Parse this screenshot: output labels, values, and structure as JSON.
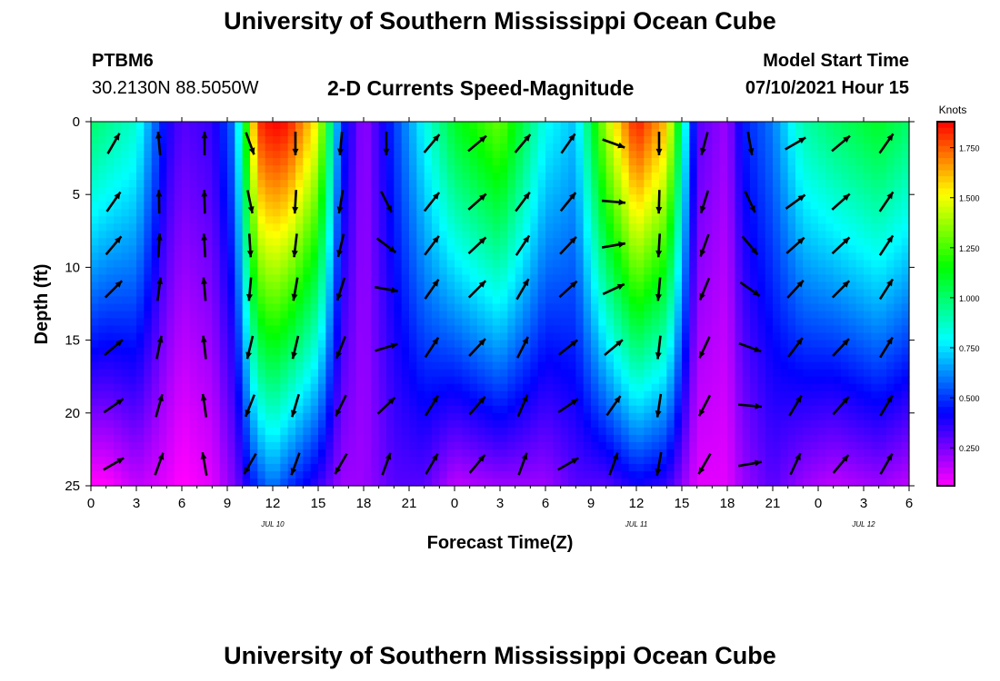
{
  "header": {
    "title": "University of Southern Mississippi Ocean Cube",
    "station_id": "PTBM6",
    "station_coords": "30.2130N  88.5050W",
    "plot_title": "2-D Currents Speed-Magnitude",
    "start_label": "Model Start Time",
    "start_value": "07/10/2021 Hour 15"
  },
  "footer": {
    "title": "University of Southern Mississippi Ocean Cube"
  },
  "chart_data": {
    "type": "heatmap",
    "title": "2-D Currents Speed-Magnitude",
    "xlabel": "Forecast Time(Z)",
    "ylabel": "Depth (ft)",
    "x_ticks": [
      "0",
      "3",
      "6",
      "9",
      "12",
      "15",
      "18",
      "21",
      "0",
      "3",
      "6",
      "9",
      "12",
      "15",
      "18",
      "21",
      "0",
      "3",
      "6"
    ],
    "x_range_hours": [
      0,
      54
    ],
    "y_ticks": [
      "0",
      "5",
      "10",
      "15",
      "20",
      "25"
    ],
    "y_range": [
      0,
      25
    ],
    "y_inverted": true,
    "date_labels": [
      {
        "text": "JUL 10",
        "hour": 12
      },
      {
        "text": "JUL 11",
        "hour": 36
      },
      {
        "text": "JUL 12",
        "hour": 51
      }
    ],
    "colorbar": {
      "unit": "Knots",
      "ticks": [
        "0.250",
        "0.500",
        "0.750",
        "1.000",
        "1.250",
        "1.500",
        "1.750"
      ],
      "range": [
        0.06,
        1.88
      ]
    },
    "speed_profiles": [
      {
        "hour": 0,
        "top": 1.0,
        "bottom": 0.05
      },
      {
        "hour": 1,
        "top": 0.95,
        "bottom": 0.05
      },
      {
        "hour": 3,
        "top": 0.85,
        "bottom": 0.15
      },
      {
        "hour": 5,
        "top": 0.4,
        "bottom": 0.1
      },
      {
        "hour": 6,
        "top": 0.3,
        "bottom": 0.05
      },
      {
        "hour": 8,
        "top": 0.35,
        "bottom": 0.1
      },
      {
        "hour": 9.5,
        "top": 0.6,
        "bottom": 0.25
      },
      {
        "hour": 11,
        "top": 1.8,
        "bottom": 0.5
      },
      {
        "hour": 12,
        "top": 1.88,
        "bottom": 0.6
      },
      {
        "hour": 13,
        "top": 1.85,
        "bottom": 0.5
      },
      {
        "hour": 15,
        "top": 1.5,
        "bottom": 0.35
      },
      {
        "hour": 16.5,
        "top": 0.5,
        "bottom": 0.2
      },
      {
        "hour": 18,
        "top": 0.2,
        "bottom": 0.2
      },
      {
        "hour": 20,
        "top": 0.5,
        "bottom": 0.3
      },
      {
        "hour": 22,
        "top": 0.8,
        "bottom": 0.3
      },
      {
        "hour": 24,
        "top": 1.1,
        "bottom": 0.15
      },
      {
        "hour": 27,
        "top": 1.3,
        "bottom": 0.2
      },
      {
        "hour": 30,
        "top": 0.8,
        "bottom": 0.2
      },
      {
        "hour": 32,
        "top": 0.7,
        "bottom": 0.3
      },
      {
        "hour": 34,
        "top": 1.4,
        "bottom": 0.3
      },
      {
        "hour": 36,
        "top": 1.85,
        "bottom": 0.4
      },
      {
        "hour": 38,
        "top": 1.6,
        "bottom": 0.35
      },
      {
        "hour": 40,
        "top": 0.3,
        "bottom": 0.1
      },
      {
        "hour": 42,
        "top": 0.2,
        "bottom": 0.1
      },
      {
        "hour": 43,
        "top": 0.45,
        "bottom": 0.2
      },
      {
        "hour": 45,
        "top": 0.6,
        "bottom": 0.3
      },
      {
        "hour": 47,
        "top": 0.9,
        "bottom": 0.2
      },
      {
        "hour": 49,
        "top": 1.0,
        "bottom": 0.15
      },
      {
        "hour": 52,
        "top": 1.1,
        "bottom": 0.2
      },
      {
        "hour": 54,
        "top": 1.0,
        "bottom": 0.15
      }
    ],
    "arrow_columns": [
      {
        "hour": 0,
        "dir_top_deg": 30,
        "dir_bottom_deg": 60
      },
      {
        "hour": 3,
        "dir_top_deg": -5,
        "dir_bottom_deg": 20
      },
      {
        "hour": 6,
        "dir_top_deg": 0,
        "dir_bottom_deg": -10
      },
      {
        "hour": 9,
        "dir_top_deg": 160,
        "dir_bottom_deg": 210
      },
      {
        "hour": 12,
        "dir_top_deg": 180,
        "dir_bottom_deg": 200
      },
      {
        "hour": 15,
        "dir_top_deg": 185,
        "dir_bottom_deg": 210
      },
      {
        "hour": 18,
        "dir_top_deg": 180,
        "dir_bottom_deg": 20
      },
      {
        "hour": 21,
        "dir_top_deg": 40,
        "dir_bottom_deg": 30
      },
      {
        "hour": 0,
        "dir_top_deg": 50,
        "dir_bottom_deg": 40
      },
      {
        "hour": 3,
        "dir_top_deg": 40,
        "dir_bottom_deg": 20
      },
      {
        "hour": 6,
        "dir_top_deg": 35,
        "dir_bottom_deg": 60
      },
      {
        "hour": 9,
        "dir_top_deg": 110,
        "dir_bottom_deg": 20
      },
      {
        "hour": 12,
        "dir_top_deg": 180,
        "dir_bottom_deg": 190
      },
      {
        "hour": 15,
        "dir_top_deg": 195,
        "dir_bottom_deg": 210
      },
      {
        "hour": 18,
        "dir_top_deg": 170,
        "dir_bottom_deg": 80
      },
      {
        "hour": 21,
        "dir_top_deg": 60,
        "dir_bottom_deg": 25
      },
      {
        "hour": 0,
        "dir_top_deg": 50,
        "dir_bottom_deg": 40
      },
      {
        "hour": 3,
        "dir_top_deg": 35,
        "dir_bottom_deg": 30
      }
    ]
  }
}
